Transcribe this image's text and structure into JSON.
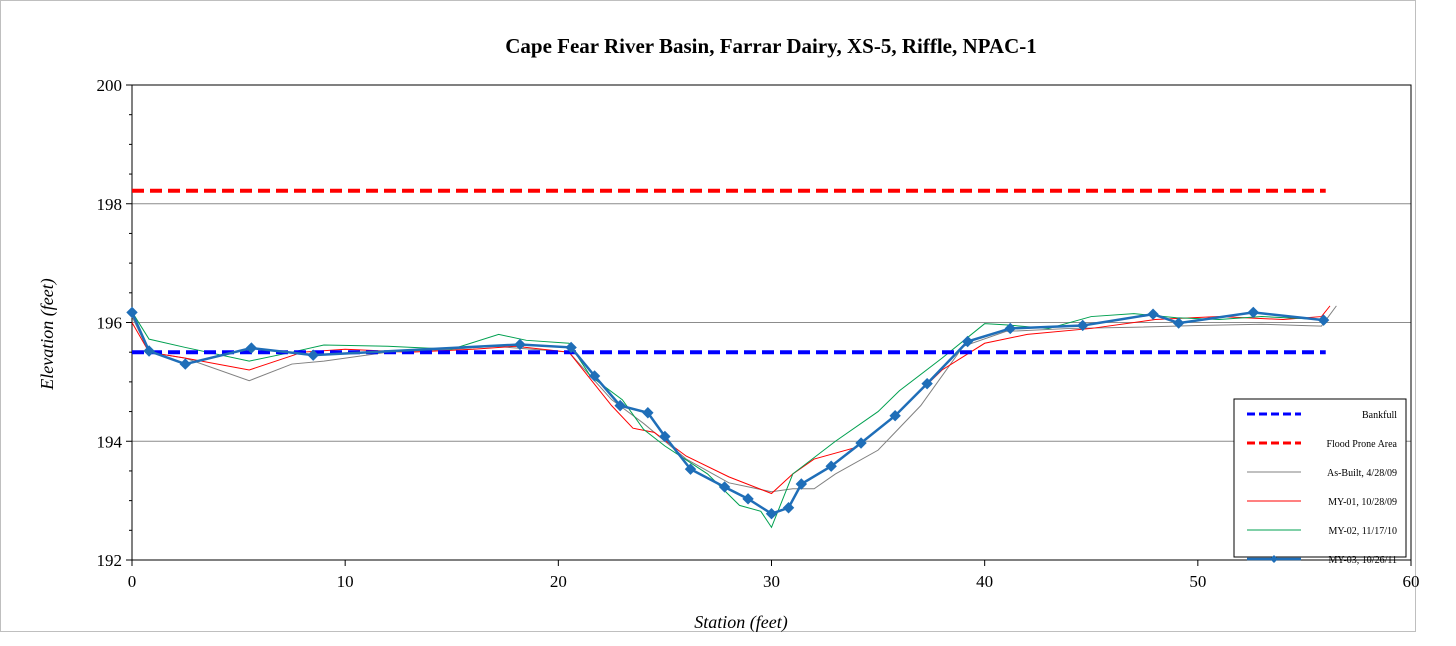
{
  "chart_data": {
    "type": "line",
    "title": "Cape Fear River Basin, Farrar Dairy, XS-5, Riffle, NPAC-1",
    "xlabel": "Station (feet)",
    "ylabel": "Elevation (feet)",
    "xlim": [
      0,
      60
    ],
    "ylim": [
      192,
      200
    ],
    "xticks": [
      "0",
      "10",
      "20",
      "30",
      "40",
      "50",
      "60"
    ],
    "yticks": [
      "192",
      "194",
      "196",
      "198",
      "200"
    ],
    "grid": "horizontal major gridlines",
    "legend_position": "bottom-right",
    "series": [
      {
        "name": "Bankfull",
        "style": "dashed",
        "color": "#0000ff",
        "x": [
          0,
          56
        ],
        "y": [
          195.5,
          195.5
        ]
      },
      {
        "name": "Flood Prone Area",
        "style": "dashed",
        "color": "#ff0000",
        "x": [
          0,
          56
        ],
        "y": [
          198.22,
          198.22
        ]
      },
      {
        "name": "As-Built, 4/28/09",
        "style": "solid-thin",
        "color": "#808080",
        "x": [
          0,
          0.8,
          2.5,
          5.5,
          7.5,
          9,
          12,
          15,
          17,
          20.5,
          22.5,
          24,
          26,
          28,
          30,
          31,
          32,
          33,
          35,
          37,
          39,
          41,
          44,
          47,
          50,
          53,
          55.8,
          56.5
        ],
        "y": [
          196.1,
          195.5,
          195.4,
          195.02,
          195.3,
          195.35,
          195.5,
          195.55,
          195.6,
          195.5,
          194.7,
          194.3,
          193.7,
          193.3,
          193.15,
          193.2,
          193.2,
          193.45,
          193.85,
          194.6,
          195.6,
          195.85,
          195.9,
          195.92,
          195.95,
          195.97,
          195.94,
          196.28
        ]
      },
      {
        "name": "MY-01, 10/28/09",
        "style": "solid-thin",
        "color": "#ff0000",
        "x": [
          0,
          0.8,
          2.5,
          5.5,
          8,
          10,
          13,
          16,
          18,
          20.5,
          22.5,
          23.5,
          24.5,
          26,
          28,
          30,
          31,
          32,
          34,
          36,
          38,
          40,
          42,
          45,
          48,
          51,
          54,
          55.8,
          56.2
        ],
        "y": [
          196.0,
          195.5,
          195.4,
          195.2,
          195.5,
          195.55,
          195.5,
          195.55,
          195.6,
          195.5,
          194.6,
          194.22,
          194.15,
          193.75,
          193.4,
          193.12,
          193.45,
          193.7,
          193.9,
          194.5,
          195.2,
          195.65,
          195.8,
          195.9,
          196.05,
          196.1,
          196.05,
          196.1,
          196.28
        ]
      },
      {
        "name": "MY-02, 11/17/10",
        "style": "solid-thin",
        "color": "#00a050",
        "x": [
          0,
          0.8,
          2.5,
          5.5,
          7.5,
          9,
          12,
          15,
          17.2,
          18.5,
          20.5,
          21.5,
          23,
          24,
          25,
          27,
          28.5,
          29.5,
          30,
          31,
          33,
          35,
          36,
          38,
          40,
          41,
          43,
          45,
          47,
          49,
          51,
          53,
          55.8
        ],
        "y": [
          196.18,
          195.72,
          195.58,
          195.35,
          195.5,
          195.62,
          195.6,
          195.55,
          195.8,
          195.7,
          195.65,
          195.1,
          194.7,
          194.2,
          193.92,
          193.45,
          192.92,
          192.82,
          192.55,
          193.45,
          194.0,
          194.5,
          194.85,
          195.4,
          195.98,
          195.96,
          195.9,
          196.1,
          196.15,
          196.08,
          196.05,
          196.1,
          196.05
        ]
      },
      {
        "name": "MY-03, 10/26/11",
        "style": "solid-thick-diamonds",
        "color": "#1f6eb8",
        "x": [
          0,
          0.8,
          2.5,
          5.6,
          8.5,
          18.2,
          20.6,
          21.7,
          22.9,
          24.2,
          25.0,
          26.2,
          27.8,
          28.9,
          30.0,
          30.8,
          31.4,
          32.8,
          34.2,
          35.8,
          37.3,
          39.2,
          41.2,
          44.6,
          47.9,
          49.1,
          52.6,
          55.9
        ],
        "y": [
          196.17,
          195.52,
          195.3,
          195.57,
          195.45,
          195.63,
          195.58,
          195.1,
          194.6,
          194.48,
          194.08,
          193.53,
          193.23,
          193.03,
          192.78,
          192.88,
          193.28,
          193.58,
          193.97,
          194.43,
          194.97,
          195.68,
          195.9,
          195.95,
          196.14,
          195.99,
          196.17,
          196.04
        ]
      }
    ]
  }
}
